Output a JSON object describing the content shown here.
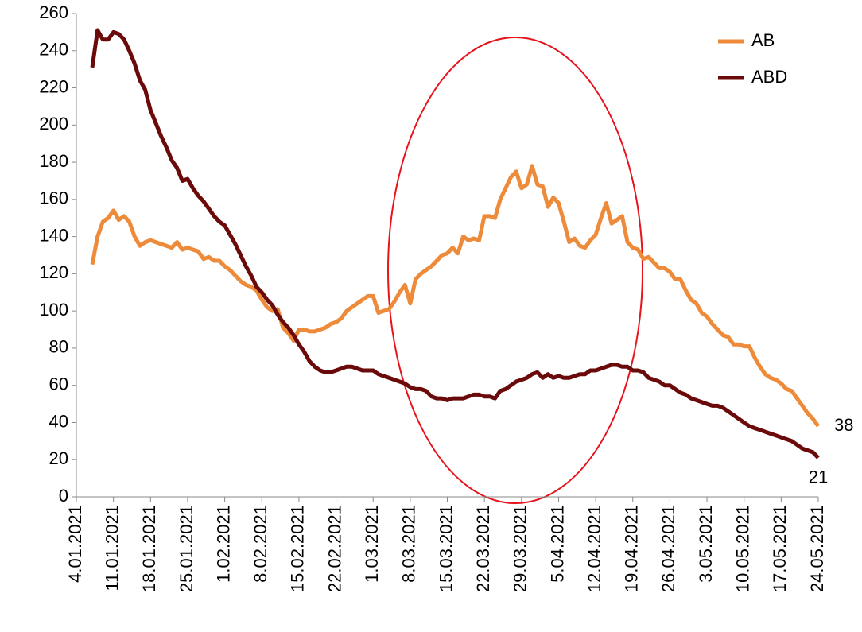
{
  "chart_data": {
    "type": "line",
    "categories": [
      "4.01.2021",
      null,
      null,
      null,
      null,
      null,
      null,
      "11.01.2021",
      null,
      null,
      null,
      null,
      null,
      null,
      "18.01.2021",
      null,
      null,
      null,
      null,
      null,
      null,
      "25.01.2021",
      null,
      null,
      null,
      null,
      null,
      null,
      "1.02.2021",
      null,
      null,
      null,
      null,
      null,
      null,
      "8.02.2021",
      null,
      null,
      null,
      null,
      null,
      null,
      "15.02.2021",
      null,
      null,
      null,
      null,
      null,
      null,
      "22.02.2021",
      null,
      null,
      null,
      null,
      null,
      null,
      "1.03.2021",
      null,
      null,
      null,
      null,
      null,
      null,
      "8.03.2021",
      null,
      null,
      null,
      null,
      null,
      null,
      "15.03.2021",
      null,
      null,
      null,
      null,
      null,
      null,
      "22.03.2021",
      null,
      null,
      null,
      null,
      null,
      null,
      "29.03.2021",
      null,
      null,
      null,
      null,
      null,
      null,
      "5.04.2021",
      null,
      null,
      null,
      null,
      null,
      null,
      "12.04.2021",
      null,
      null,
      null,
      null,
      null,
      null,
      "19.04.2021",
      null,
      null,
      null,
      null,
      null,
      null,
      "26.04.2021",
      null,
      null,
      null,
      null,
      null,
      null,
      "3.05.2021",
      null,
      null,
      null,
      null,
      null,
      null,
      "10.05.2021",
      null,
      null,
      null,
      null,
      null,
      null,
      "17.05.2021",
      null,
      null,
      null,
      null,
      null,
      null,
      "24.05.2021"
    ],
    "series": [
      {
        "name": "AB",
        "color": "#ed8b3a",
        "values": [
          null,
          null,
          null,
          125,
          140,
          148,
          150,
          154,
          149,
          151,
          148,
          140,
          135,
          137,
          138,
          137,
          136,
          135,
          134,
          137,
          133,
          134,
          133,
          132,
          128,
          129,
          127,
          127,
          124,
          122,
          119,
          116,
          114,
          113,
          111,
          106,
          102,
          100,
          101,
          91,
          88,
          84,
          90,
          90,
          89,
          89,
          90,
          91,
          93,
          94,
          96,
          100,
          102,
          104,
          106,
          108,
          108,
          99,
          100,
          101,
          105,
          110,
          114,
          104,
          117,
          120,
          122,
          124,
          127,
          130,
          131,
          134,
          131,
          140,
          138,
          139,
          138,
          151,
          151,
          150,
          160,
          166,
          172,
          175,
          166,
          168,
          178,
          168,
          167,
          156,
          161,
          158,
          148,
          137,
          139,
          135,
          134,
          138,
          141,
          150,
          158,
          147,
          149,
          151,
          137,
          134,
          133,
          128,
          129,
          126,
          123,
          123,
          121,
          117,
          117,
          111,
          106,
          104,
          99,
          97,
          93,
          90,
          87,
          86,
          82,
          82,
          81,
          81,
          75,
          70,
          66,
          64,
          63,
          61,
          58,
          57,
          53,
          49,
          45,
          42,
          38
        ]
      },
      {
        "name": "ABD",
        "color": "#6b0a0a",
        "values": [
          null,
          null,
          null,
          231,
          251,
          246,
          246,
          250,
          249,
          246,
          240,
          233,
          224,
          219,
          208,
          201,
          194,
          188,
          181,
          177,
          170,
          171,
          166,
          162,
          159,
          155,
          151,
          148,
          146,
          141,
          136,
          130,
          124,
          119,
          113,
          110,
          106,
          103,
          98,
          94,
          91,
          87,
          82,
          78,
          73,
          70,
          68,
          67,
          67,
          68,
          69,
          70,
          70,
          69,
          68,
          68,
          68,
          66,
          65,
          64,
          63,
          62,
          61,
          59,
          58,
          58,
          57,
          54,
          53,
          53,
          52,
          53,
          53,
          53,
          54,
          55,
          55,
          54,
          54,
          53,
          57,
          58,
          60,
          62,
          63,
          64,
          66,
          67,
          64,
          66,
          64,
          65,
          64,
          64,
          65,
          66,
          66,
          68,
          68,
          69,
          70,
          71,
          71,
          70,
          70,
          68,
          68,
          67,
          64,
          63,
          62,
          60,
          60,
          58,
          56,
          55,
          53,
          52,
          51,
          50,
          49,
          49,
          48,
          46,
          44,
          42,
          40,
          38,
          37,
          36,
          35,
          34,
          33,
          32,
          31,
          30,
          28,
          26,
          25,
          24,
          21
        ]
      }
    ],
    "ylim": [
      0,
      260
    ],
    "yticks": [
      0,
      20,
      40,
      60,
      80,
      100,
      120,
      140,
      160,
      180,
      200,
      220,
      240,
      260
    ],
    "grid": false,
    "legend": "top-right",
    "end_labels": true
  }
}
